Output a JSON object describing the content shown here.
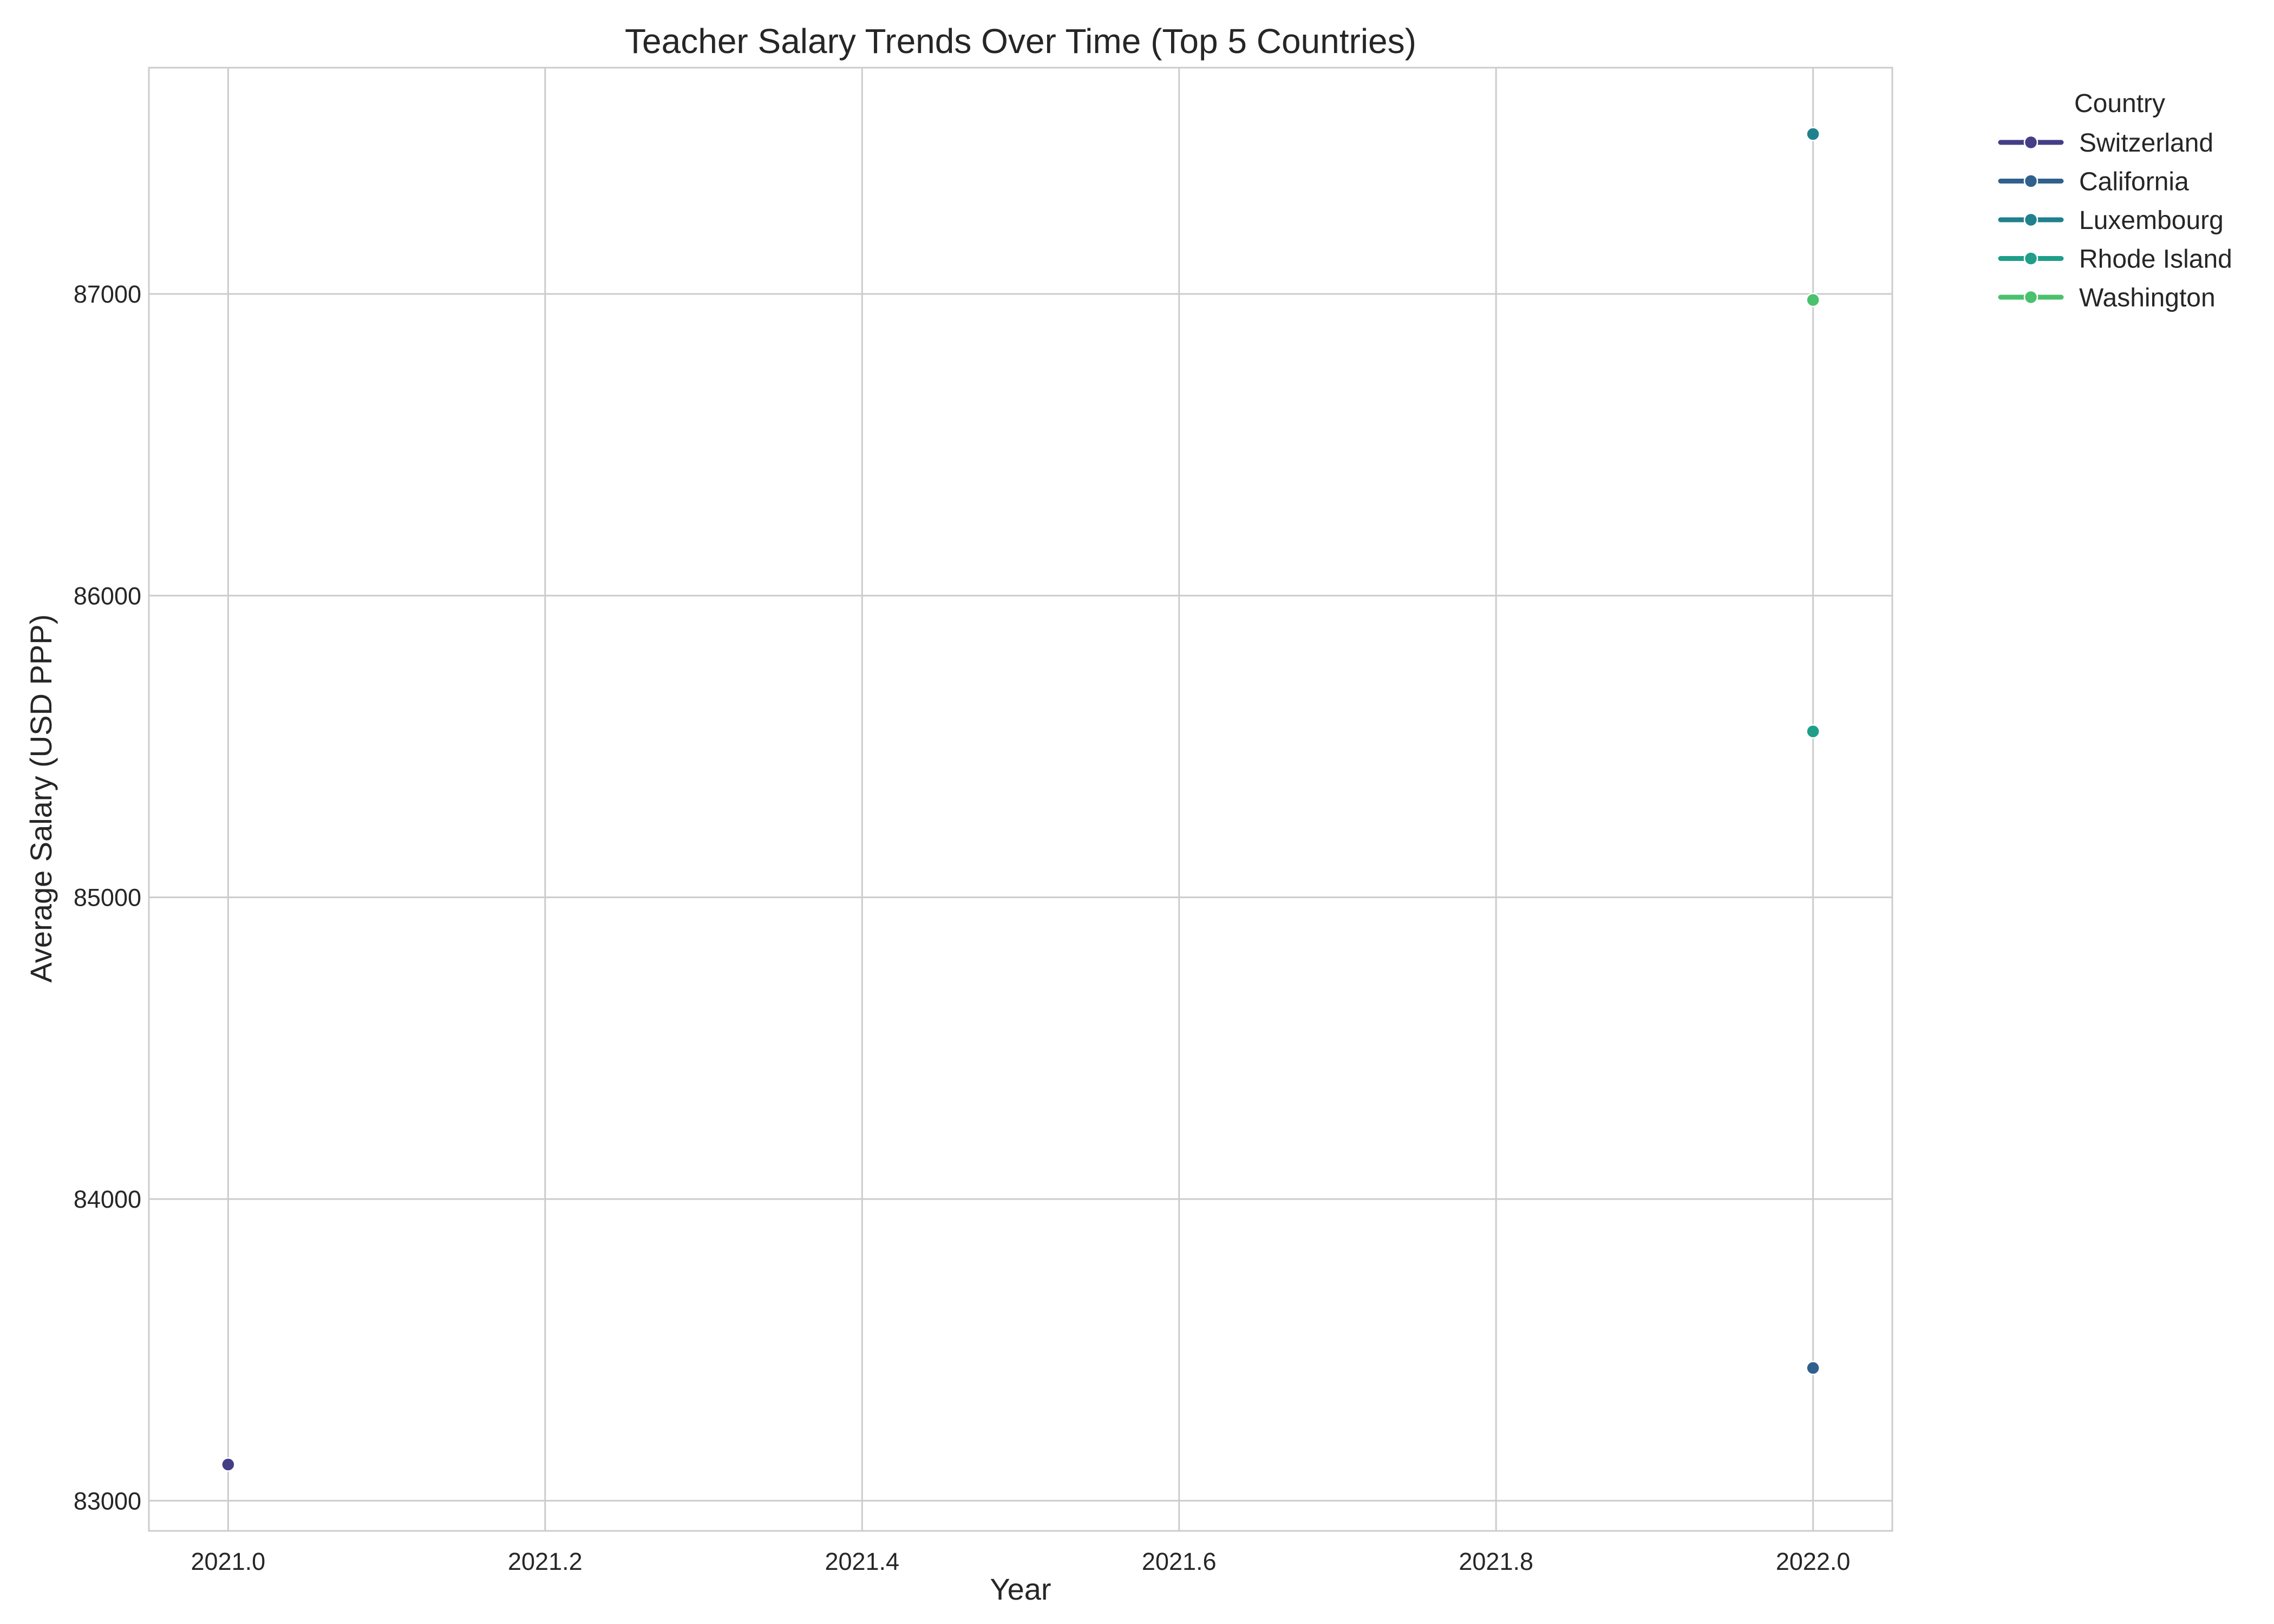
{
  "chart_data": {
    "type": "line",
    "title": "Teacher Salary Trends Over Time (Top 5 Countries)",
    "xlabel": "Year",
    "ylabel": "Average Salary (USD PPP)",
    "xlim": [
      2020.95,
      2022.05
    ],
    "ylim": [
      82900,
      87750
    ],
    "x_ticks": [
      "2021.0",
      "2021.2",
      "2021.4",
      "2021.6",
      "2021.8",
      "2022.0"
    ],
    "x_tick_values": [
      2021.0,
      2021.2,
      2021.4,
      2021.6,
      2021.8,
      2022.0
    ],
    "y_ticks": [
      "83000",
      "84000",
      "85000",
      "86000",
      "87000"
    ],
    "y_tick_values": [
      83000,
      84000,
      85000,
      86000,
      87000
    ],
    "grid": true,
    "legend": {
      "title": "Country",
      "placement": "outside-top-right"
    },
    "series": [
      {
        "name": "Switzerland",
        "color": "#433e85",
        "x": [
          2021.0
        ],
        "y": [
          83120
        ]
      },
      {
        "name": "California",
        "color": "#30608d",
        "x": [
          2022.0
        ],
        "y": [
          83440
        ]
      },
      {
        "name": "Luxembourg",
        "color": "#21808d",
        "x": [
          2022.0
        ],
        "y": [
          87530
        ]
      },
      {
        "name": "Rhode Island",
        "color": "#1f9e89",
        "x": [
          2022.0
        ],
        "y": [
          85550
        ]
      },
      {
        "name": "Washington",
        "color": "#4ac16d",
        "x": [
          2022.0
        ],
        "y": [
          86980
        ]
      }
    ]
  }
}
